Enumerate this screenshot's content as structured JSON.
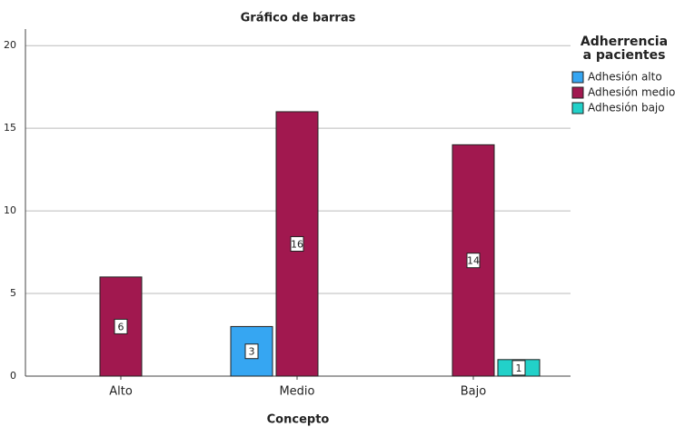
{
  "chart_data": {
    "type": "bar",
    "title": "Gráfico de barras",
    "x_label": "Concepto",
    "categories": [
      "Alto",
      "Medio",
      "Bajo"
    ],
    "series": [
      {
        "name": "Adhesión alto",
        "color": "#36a6f2",
        "values": [
          null,
          3,
          null
        ]
      },
      {
        "name": "Adhesión medio",
        "color": "#a1184f",
        "values": [
          6,
          16,
          14
        ]
      },
      {
        "name": "Adhesión bajo",
        "color": "#22d1c9",
        "values": [
          null,
          null,
          1
        ]
      }
    ],
    "legend_title": [
      "Adherrencia",
      "a pacientes"
    ],
    "legend_position": "right",
    "ylim": [
      0,
      21
    ],
    "yticks": [
      0,
      5,
      10,
      15,
      20
    ],
    "grid": true,
    "data_labels": true
  }
}
